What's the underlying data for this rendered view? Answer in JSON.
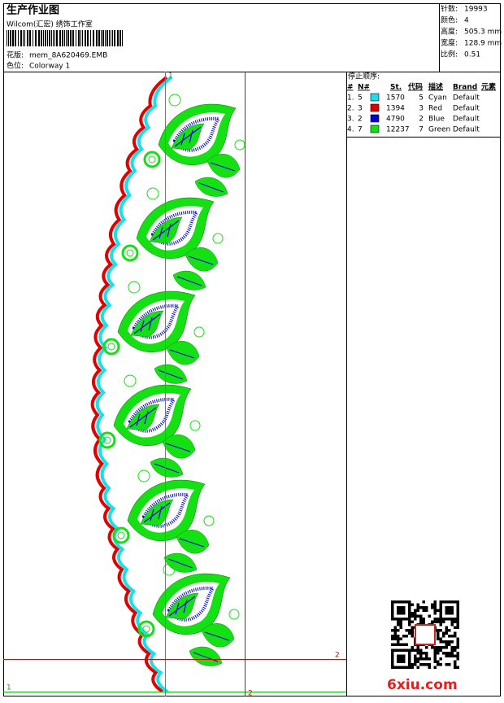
{
  "header": {
    "title": "生产作业图",
    "studio": "Wilcom(汇宏) 绣饰工作室",
    "design_label": "花版:",
    "design_file": "mem_8A620469.EMB",
    "colorway_label": "色位:",
    "colorway": "Colorway 1"
  },
  "info": [
    {
      "label": "针数:",
      "value": "19993"
    },
    {
      "label": "颜色:",
      "value": "4"
    },
    {
      "label": "高度:",
      "value": "505.3 mm"
    },
    {
      "label": "宽度:",
      "value": "128.9 mm"
    },
    {
      "label": "比例:",
      "value": "0.51"
    }
  ],
  "table": {
    "title": "停止顺序:",
    "columns": [
      "#",
      "N#",
      "St.",
      "代码",
      "描述",
      "Brand",
      "元素"
    ],
    "rows": [
      {
        "index": "1.",
        "needle": "5",
        "color": "#18e0ea",
        "stitches": "1570",
        "code": "5",
        "description": "Cyan",
        "brand": "Default"
      },
      {
        "index": "2.",
        "needle": "3",
        "color": "#e00000",
        "stitches": "1394",
        "code": "3",
        "description": "Red",
        "brand": "Default"
      },
      {
        "index": "3.",
        "needle": "2",
        "color": "#0000d8",
        "stitches": "4790",
        "code": "2",
        "description": "Blue",
        "brand": "Default"
      },
      {
        "index": "4.",
        "needle": "7",
        "color": "#10e010",
        "stitches": "12237",
        "code": "7",
        "description": "Green",
        "brand": "Default"
      }
    ]
  },
  "guides": {
    "top_start": "1",
    "right_end": "2",
    "left_start": "1",
    "bottom_end": "2"
  },
  "watermark": "6xiu.com"
}
